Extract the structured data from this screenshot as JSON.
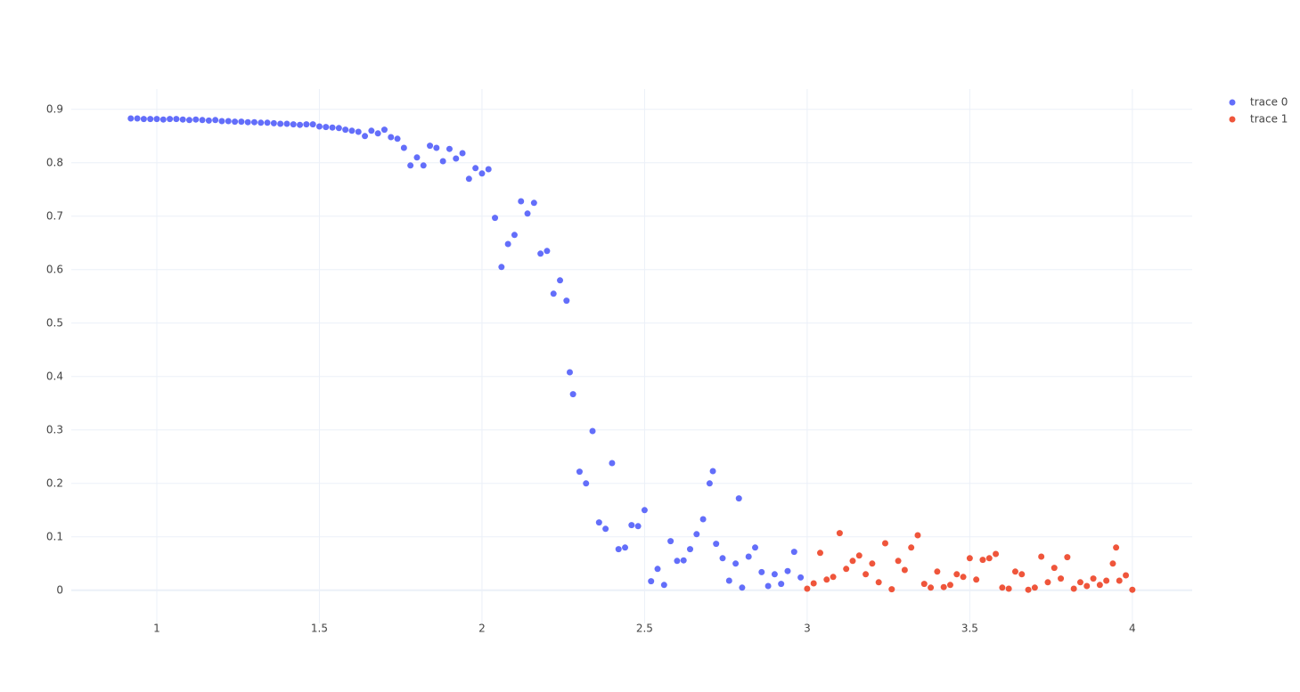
{
  "chart_data": {
    "type": "scatter",
    "grid": true,
    "legend": "top-right",
    "xlim": [
      0.737,
      4.184
    ],
    "ylim": [
      -0.062,
      0.938
    ],
    "xticks": [
      1,
      1.5,
      2,
      2.5,
      3,
      3.5,
      4
    ],
    "yticks": [
      0,
      0.1,
      0.2,
      0.3,
      0.4,
      0.5,
      0.6,
      0.7,
      0.8,
      0.9
    ],
    "series": [
      {
        "name": "trace 0",
        "color": "#636efa",
        "x": [
          0.92,
          0.94,
          0.96,
          0.98,
          1.0,
          1.02,
          1.04,
          1.06,
          1.08,
          1.1,
          1.12,
          1.14,
          1.16,
          1.18,
          1.2,
          1.22,
          1.24,
          1.26,
          1.28,
          1.3,
          1.32,
          1.34,
          1.36,
          1.38,
          1.4,
          1.42,
          1.44,
          1.46,
          1.48,
          1.5,
          1.52,
          1.54,
          1.56,
          1.58,
          1.6,
          1.62,
          1.64,
          1.66,
          1.68,
          1.7,
          1.72,
          1.74,
          1.76,
          1.78,
          1.8,
          1.82,
          1.84,
          1.86,
          1.88,
          1.9,
          1.92,
          1.94,
          1.96,
          1.98,
          2.0,
          2.02,
          2.04,
          2.06,
          2.08,
          2.1,
          2.12,
          2.14,
          2.16,
          2.18,
          2.2,
          2.22,
          2.24,
          2.26,
          2.27,
          2.28,
          2.3,
          2.32,
          2.34,
          2.36,
          2.38,
          2.4,
          2.42,
          2.44,
          2.46,
          2.48,
          2.5,
          2.52,
          2.54,
          2.56,
          2.58,
          2.6,
          2.62,
          2.64,
          2.66,
          2.68,
          2.7,
          2.71,
          2.72,
          2.74,
          2.76,
          2.78,
          2.79,
          2.8,
          2.82,
          2.84,
          2.86,
          2.88,
          2.9,
          2.92,
          2.94,
          2.96,
          2.98
        ],
        "values": [
          0.883,
          0.883,
          0.882,
          0.882,
          0.882,
          0.881,
          0.882,
          0.882,
          0.881,
          0.88,
          0.881,
          0.88,
          0.879,
          0.88,
          0.878,
          0.878,
          0.877,
          0.877,
          0.876,
          0.876,
          0.875,
          0.875,
          0.874,
          0.873,
          0.873,
          0.872,
          0.871,
          0.872,
          0.872,
          0.868,
          0.867,
          0.866,
          0.865,
          0.862,
          0.86,
          0.858,
          0.85,
          0.86,
          0.855,
          0.862,
          0.848,
          0.845,
          0.828,
          0.795,
          0.81,
          0.795,
          0.832,
          0.828,
          0.803,
          0.826,
          0.808,
          0.818,
          0.77,
          0.79,
          0.78,
          0.788,
          0.697,
          0.605,
          0.648,
          0.665,
          0.728,
          0.705,
          0.725,
          0.63,
          0.635,
          0.555,
          0.58,
          0.542,
          0.408,
          0.367,
          0.222,
          0.2,
          0.298,
          0.127,
          0.115,
          0.238,
          0.077,
          0.08,
          0.122,
          0.12,
          0.15,
          0.017,
          0.04,
          0.01,
          0.092,
          0.055,
          0.056,
          0.077,
          0.105,
          0.133,
          0.2,
          0.223,
          0.087,
          0.06,
          0.018,
          0.05,
          0.172,
          0.005,
          0.063,
          0.08,
          0.034,
          0.008,
          0.03,
          0.012,
          0.036,
          0.072,
          0.024
        ]
      },
      {
        "name": "trace 1",
        "color": "#ef553b",
        "x": [
          3.0,
          3.02,
          3.04,
          3.06,
          3.08,
          3.1,
          3.12,
          3.14,
          3.16,
          3.18,
          3.2,
          3.22,
          3.24,
          3.26,
          3.28,
          3.3,
          3.32,
          3.34,
          3.36,
          3.38,
          3.4,
          3.42,
          3.44,
          3.46,
          3.48,
          3.5,
          3.52,
          3.54,
          3.56,
          3.58,
          3.6,
          3.62,
          3.64,
          3.66,
          3.68,
          3.7,
          3.72,
          3.74,
          3.76,
          3.78,
          3.8,
          3.82,
          3.84,
          3.86,
          3.88,
          3.9,
          3.92,
          3.94,
          3.95,
          3.96,
          3.98,
          4.0
        ],
        "values": [
          0.003,
          0.013,
          0.07,
          0.02,
          0.025,
          0.107,
          0.04,
          0.055,
          0.065,
          0.03,
          0.05,
          0.015,
          0.088,
          0.002,
          0.055,
          0.038,
          0.08,
          0.103,
          0.012,
          0.005,
          0.035,
          0.006,
          0.01,
          0.03,
          0.025,
          0.06,
          0.02,
          0.057,
          0.06,
          0.068,
          0.005,
          0.003,
          0.035,
          0.03,
          0.001,
          0.005,
          0.063,
          0.015,
          0.042,
          0.022,
          0.062,
          0.003,
          0.015,
          0.008,
          0.022,
          0.01,
          0.018,
          0.05,
          0.08,
          0.018,
          0.028,
          0.001
        ]
      }
    ]
  }
}
